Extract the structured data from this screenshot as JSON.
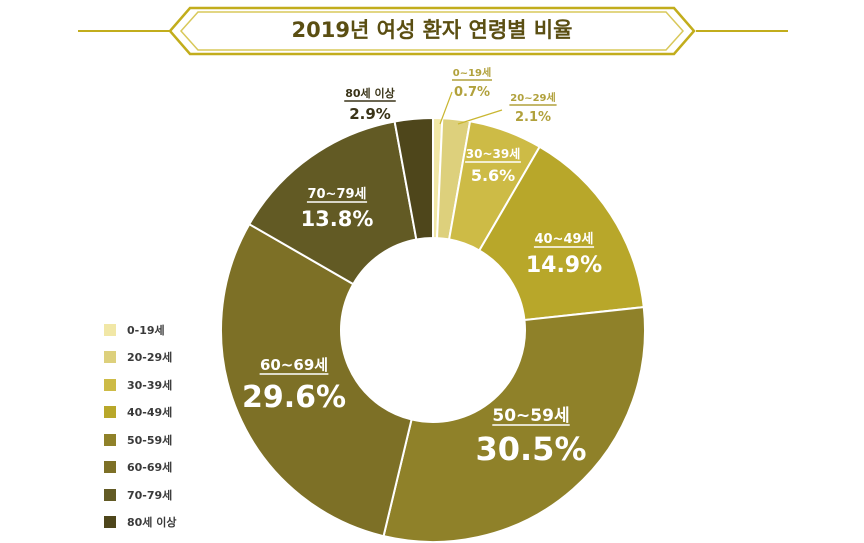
{
  "title": "2019년 여성 환자 연령별 비율",
  "colors": {
    "title_text": "#5a4e12",
    "banner_stroke": "#c2ad1c",
    "line": "#c9b631"
  },
  "chart_data": {
    "type": "pie",
    "categories": [
      "0-19세",
      "20-29세",
      "30-39세",
      "40-49세",
      "50-59세",
      "60-69세",
      "70-79세",
      "80세 이상"
    ],
    "slice_labels": [
      "0~19세",
      "20~29세",
      "30~39세",
      "40~49세",
      "50~59세",
      "60~69세",
      "70~79세",
      "80세 이상"
    ],
    "values": [
      0.7,
      2.1,
      5.6,
      14.9,
      30.5,
      29.6,
      13.8,
      2.9
    ],
    "value_labels": [
      "0.7%",
      "2.1%",
      "5.6%",
      "14.9%",
      "30.5%",
      "29.6%",
      "13.8%",
      "2.9%"
    ],
    "colors": [
      "#f1e7a6",
      "#ddd07c",
      "#cdbb46",
      "#b8a72a",
      "#8f8129",
      "#7d7026",
      "#625a24",
      "#4e461b"
    ],
    "label_colors": [
      "#b1a13c",
      "#b1a13c",
      "#ffffff",
      "#ffffff",
      "#ffffff",
      "#ffffff",
      "#ffffff",
      "#3a3418"
    ],
    "legend_position": "left",
    "donut": true
  }
}
